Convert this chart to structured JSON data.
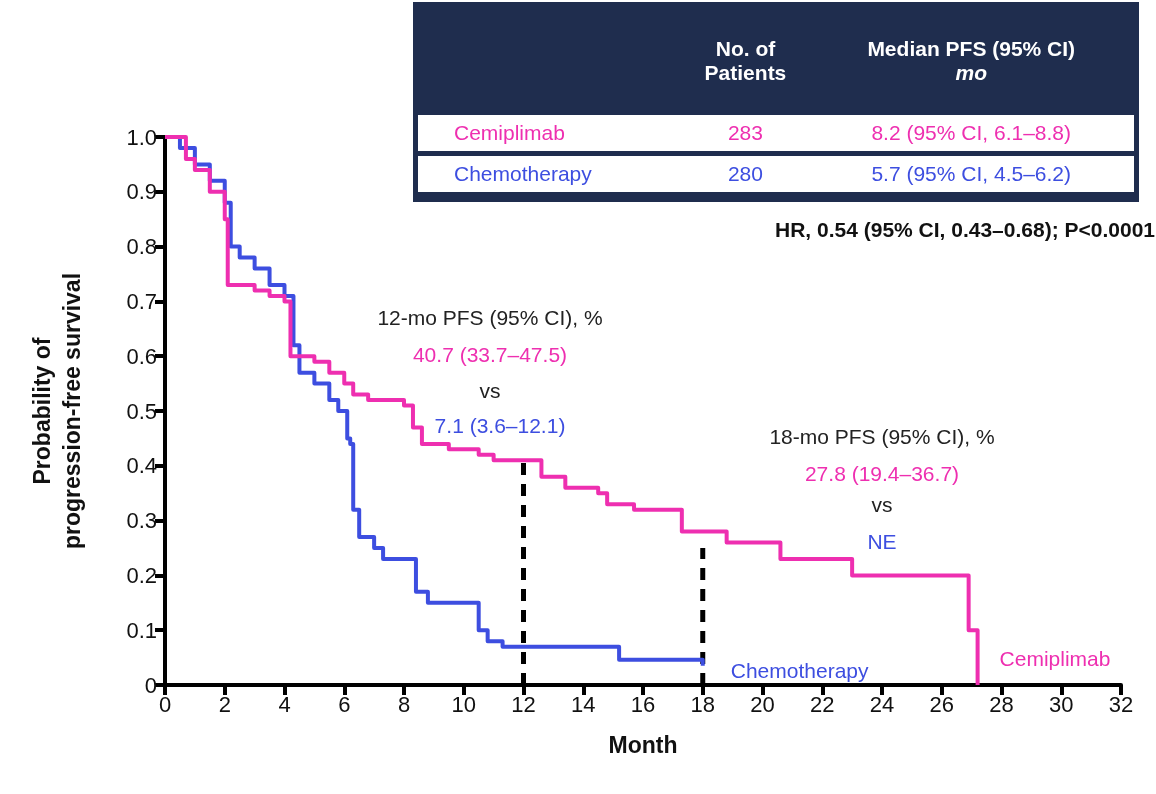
{
  "chart_data": {
    "type": "step",
    "xlabel": "Month",
    "ylabel": "Probability of\nprogression-free survival",
    "xlim": [
      0,
      32
    ],
    "xticks": [
      0,
      2,
      4,
      6,
      8,
      10,
      12,
      14,
      16,
      18,
      20,
      22,
      24,
      26,
      28,
      30,
      32
    ],
    "ylim": [
      0,
      1
    ],
    "yticks": [
      0,
      0.1,
      0.2,
      0.3,
      0.4,
      0.5,
      0.6,
      0.7,
      0.8,
      0.9,
      {
        "value": 1,
        "label": "1.0"
      }
    ],
    "grid": false,
    "legend": false,
    "series": [
      {
        "name": "Cemiplimab",
        "color": "#ee2fb0",
        "x": [
          0,
          0.7,
          1,
          1.5,
          2,
          2.1,
          3,
          3.5,
          4,
          4.2,
          5,
          5.5,
          6,
          6.3,
          6.8,
          8,
          8.3,
          8.6,
          9.5,
          10.5,
          11,
          12.3,
          12.6,
          13.4,
          14.5,
          14.8,
          15.7,
          17.3,
          18.8,
          20.6,
          23,
          26.9,
          27.2
        ],
        "values": [
          1,
          0.96,
          0.94,
          0.9,
          0.85,
          0.73,
          0.72,
          0.71,
          0.7,
          0.6,
          0.59,
          0.57,
          0.55,
          0.53,
          0.52,
          0.51,
          0.47,
          0.44,
          0.43,
          0.42,
          0.41,
          0.41,
          0.38,
          0.36,
          0.35,
          0.33,
          0.32,
          0.28,
          0.26,
          0.23,
          0.2,
          0.1,
          0
        ]
      },
      {
        "name": "Chemotherapy",
        "color": "#3d4ee0",
        "x": [
          0,
          0.5,
          1,
          1.5,
          2,
          2.2,
          2.5,
          3,
          3.5,
          4,
          4.3,
          4.5,
          5,
          5.5,
          5.8,
          6.1,
          6.2,
          6.3,
          6.5,
          7,
          7.3,
          8.1,
          8.4,
          8.8,
          10.4,
          10.5,
          10.8,
          11.3,
          12.5,
          15.2,
          18
        ],
        "values": [
          1,
          0.98,
          0.95,
          0.92,
          0.88,
          0.8,
          0.78,
          0.76,
          0.73,
          0.71,
          0.62,
          0.57,
          0.55,
          0.52,
          0.5,
          0.45,
          0.44,
          0.32,
          0.27,
          0.25,
          0.23,
          0.23,
          0.17,
          0.15,
          0.15,
          0.1,
          0.08,
          0.07,
          0.07,
          0.046,
          0.035
        ]
      },
      {
        "type": "line",
        "color": "#000000",
        "line_style": "dashed",
        "x": [
          12,
          12
        ],
        "values": [
          0,
          0.41
        ]
      },
      {
        "type": "line",
        "color": "#000000",
        "line_style": "dashed",
        "x": [
          18,
          18
        ],
        "values": [
          0,
          0.25
        ]
      }
    ],
    "annotations": [
      "No. of Patients",
      "Median PFS (95% CI)",
      "mo",
      "283",
      "8.2 (95% CI, 6.1–8.8)",
      "280",
      "5.7 (95% CI, 4.5–6.2)",
      "HR, 0.54 (95% CI, 0.43–0.68); P<0.0001",
      "12-mo PFS (95% CI), %",
      "40.7 (33.7–47.5)",
      "vs",
      "7.1 (3.6–12.1)",
      "18-mo PFS (95% CI), %",
      "27.8 (19.4–36.7)",
      "vs",
      "NE"
    ]
  }
}
